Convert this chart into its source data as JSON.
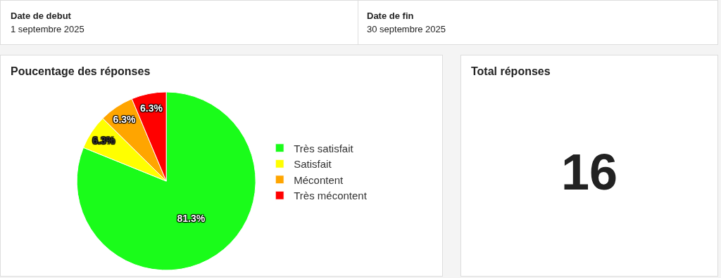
{
  "chart_data": [
    {
      "type": "other",
      "annotations": [
        "Date de debut",
        "1 septembre 2025",
        "Date de fin",
        "30 septembre 2025"
      ]
    },
    {
      "type": "pie",
      "title": "Poucentage des réponses",
      "categories": [
        "Très satisfait",
        "Satisfait",
        "Mécontent",
        "Très mécontent"
      ],
      "values": [
        81.3,
        6.3,
        6.3,
        6.3
      ],
      "colors": [
        "#1afc1a",
        "#ffff00",
        "#ffa500",
        "#ff0000"
      ],
      "value_labels": [
        "81.3%",
        "6.3%",
        "6.3%",
        "6.3%"
      ],
      "legend": "right"
    },
    {
      "type": "other",
      "title": "Total réponses",
      "annotations": [
        "16"
      ]
    }
  ]
}
